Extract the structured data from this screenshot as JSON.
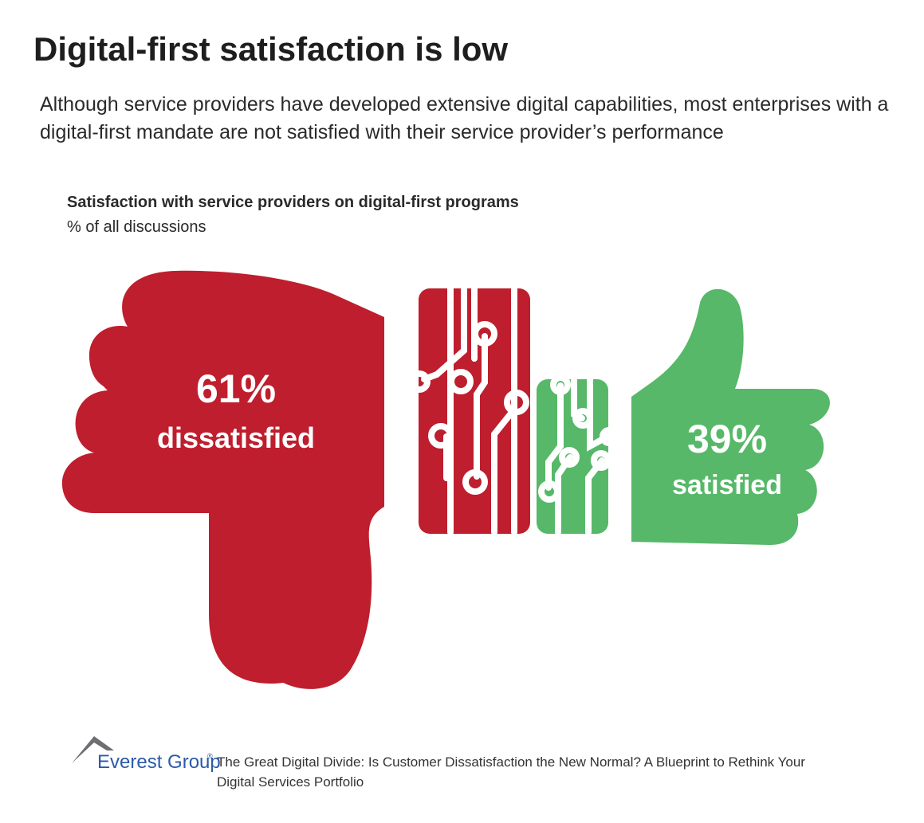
{
  "header": {
    "title": "Digital-first satisfaction is low",
    "subtitle": "Although service providers have developed extensive digital capabilities, most enterprises with a digital-first mandate are not satisfied with their service provider’s performance"
  },
  "chart_data": {
    "type": "pie",
    "title": "Satisfaction with service providers on digital-first programs",
    "subtitle": "% of all discussions",
    "unit": "%",
    "categories": [
      "dissatisfied",
      "satisfied"
    ],
    "values": [
      61,
      39
    ],
    "data_labels": [
      "61%",
      "39%"
    ],
    "colors": [
      "#be1e2d",
      "#56b868"
    ],
    "grid": false,
    "legend": "none"
  },
  "footer": {
    "logo_text": "Everest Group",
    "logo_mark": "®",
    "source": "The Great Digital Divide: Is Customer Dissatisfaction the New Normal? A Blueprint to Rethink Your Digital Services Portfolio"
  },
  "icons": [
    "thumbs-down-icon",
    "thumbs-up-icon",
    "circuit-icon",
    "everest-mountain-icon"
  ]
}
